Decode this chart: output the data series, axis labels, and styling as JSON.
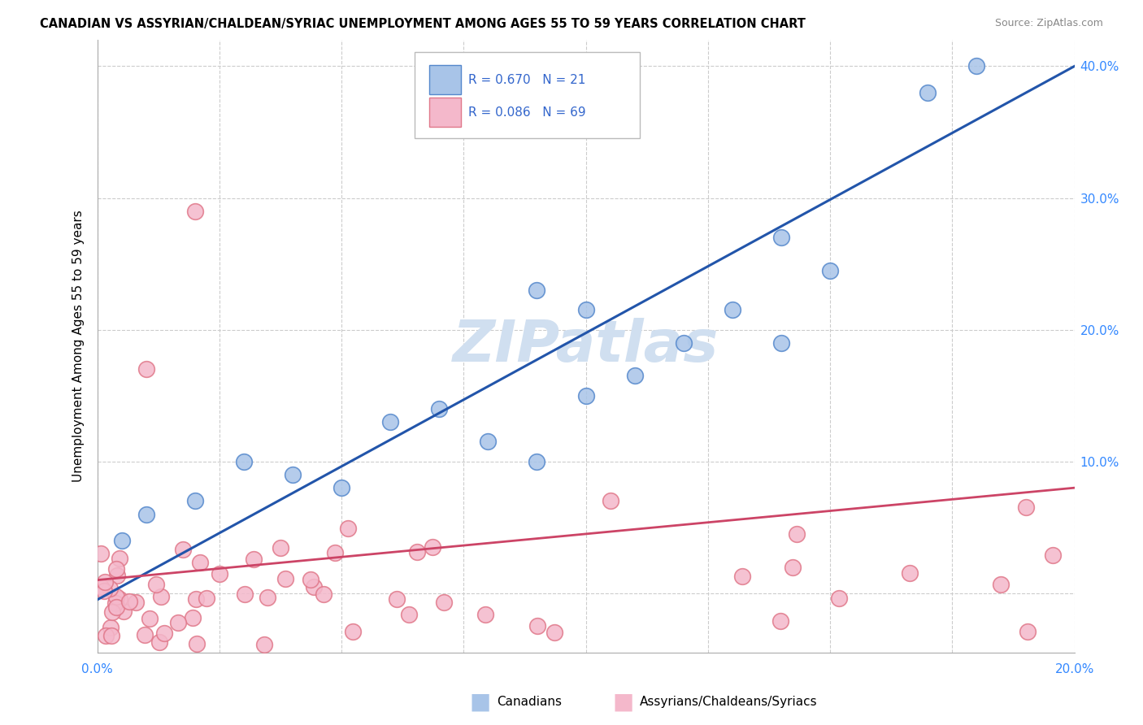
{
  "title": "CANADIAN VS ASSYRIAN/CHALDEAN/SYRIAC UNEMPLOYMENT AMONG AGES 55 TO 59 YEARS CORRELATION CHART",
  "source": "Source: ZipAtlas.com",
  "ylabel": "Unemployment Among Ages 55 to 59 years",
  "xlim": [
    0.0,
    0.2
  ],
  "ylim": [
    -0.045,
    0.42
  ],
  "yticks": [
    0.0,
    0.1,
    0.2,
    0.3,
    0.4
  ],
  "canadians_R": 0.67,
  "canadians_N": 21,
  "assyrians_R": 0.086,
  "assyrians_N": 69,
  "canadian_color": "#a8c4e8",
  "canadian_edge_color": "#5588cc",
  "assyrian_color": "#f4b8cb",
  "assyrian_edge_color": "#e0788a",
  "line_canadian_color": "#2255aa",
  "line_assyrian_color": "#cc4466",
  "legend_text_color": "#3366cc",
  "watermark_color": "#d0dff0",
  "canadians_x": [
    0.005,
    0.01,
    0.02,
    0.03,
    0.04,
    0.05,
    0.06,
    0.07,
    0.08,
    0.09,
    0.1,
    0.1,
    0.11,
    0.12,
    0.13,
    0.14,
    0.15,
    0.17,
    0.18,
    0.09,
    0.14
  ],
  "canadians_y": [
    0.04,
    0.06,
    0.07,
    0.1,
    0.09,
    0.08,
    0.13,
    0.14,
    0.115,
    0.1,
    0.15,
    0.215,
    0.165,
    0.19,
    0.215,
    0.27,
    0.245,
    0.38,
    0.4,
    0.23,
    0.19
  ],
  "can_line_x0": 0.0,
  "can_line_y0": -0.005,
  "can_line_x1": 0.2,
  "can_line_y1": 0.4,
  "asy_line_x0": 0.0,
  "asy_line_y0": 0.01,
  "asy_line_x1": 0.2,
  "asy_line_y1": 0.08
}
